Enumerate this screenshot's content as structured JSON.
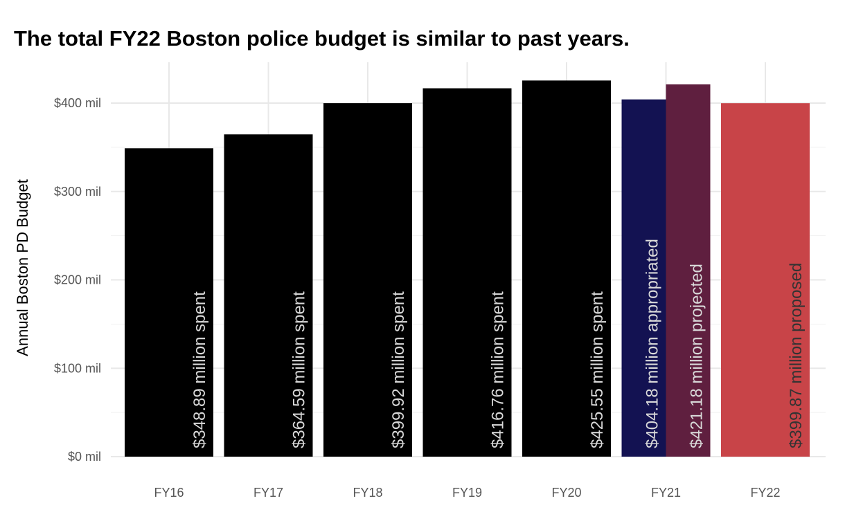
{
  "chart_data": {
    "type": "bar",
    "title": "The total FY22 Boston police budget is similar to past years.",
    "ylabel": "Annual Boston PD Budget",
    "xlabel": "",
    "ylim": [
      0,
      440
    ],
    "y_ticks": [
      {
        "value": 0,
        "label": "$0 mil"
      },
      {
        "value": 100,
        "label": "$100 mil"
      },
      {
        "value": 200,
        "label": "$200 mil"
      },
      {
        "value": 300,
        "label": "$300 mil"
      },
      {
        "value": 400,
        "label": "$400 mil"
      }
    ],
    "categories": [
      "FY16",
      "FY17",
      "FY18",
      "FY19",
      "FY20",
      "FY21",
      "FY22"
    ],
    "bars": [
      {
        "category": "FY16",
        "value": 348.89,
        "label": "$348.89 million spent",
        "color": "#000000",
        "label_color": "#d9d9d9"
      },
      {
        "category": "FY17",
        "value": 364.59,
        "label": "$364.59 million spent",
        "color": "#000000",
        "label_color": "#d9d9d9"
      },
      {
        "category": "FY18",
        "value": 399.92,
        "label": "$399.92 million spent",
        "color": "#000000",
        "label_color": "#d9d9d9"
      },
      {
        "category": "FY19",
        "value": 416.76,
        "label": "$416.76 million spent",
        "color": "#000000",
        "label_color": "#d9d9d9"
      },
      {
        "category": "FY20",
        "value": 425.55,
        "label": "$425.55 million spent",
        "color": "#000000",
        "label_color": "#d9d9d9"
      },
      {
        "category": "FY21",
        "value": 404.18,
        "label": "$404.18 million appropriated",
        "color": "#131252",
        "label_color": "#d9d9d9",
        "dodge": "left"
      },
      {
        "category": "FY21",
        "value": 421.18,
        "label": "$421.18 million projected",
        "color": "#5f1f3f",
        "label_color": "#d9d9d9",
        "dodge": "right"
      },
      {
        "category": "FY22",
        "value": 399.87,
        "label": "$399.87 million proposed",
        "color": "#c84448",
        "label_color": "#333333"
      }
    ],
    "grid": true,
    "legend": "none"
  }
}
